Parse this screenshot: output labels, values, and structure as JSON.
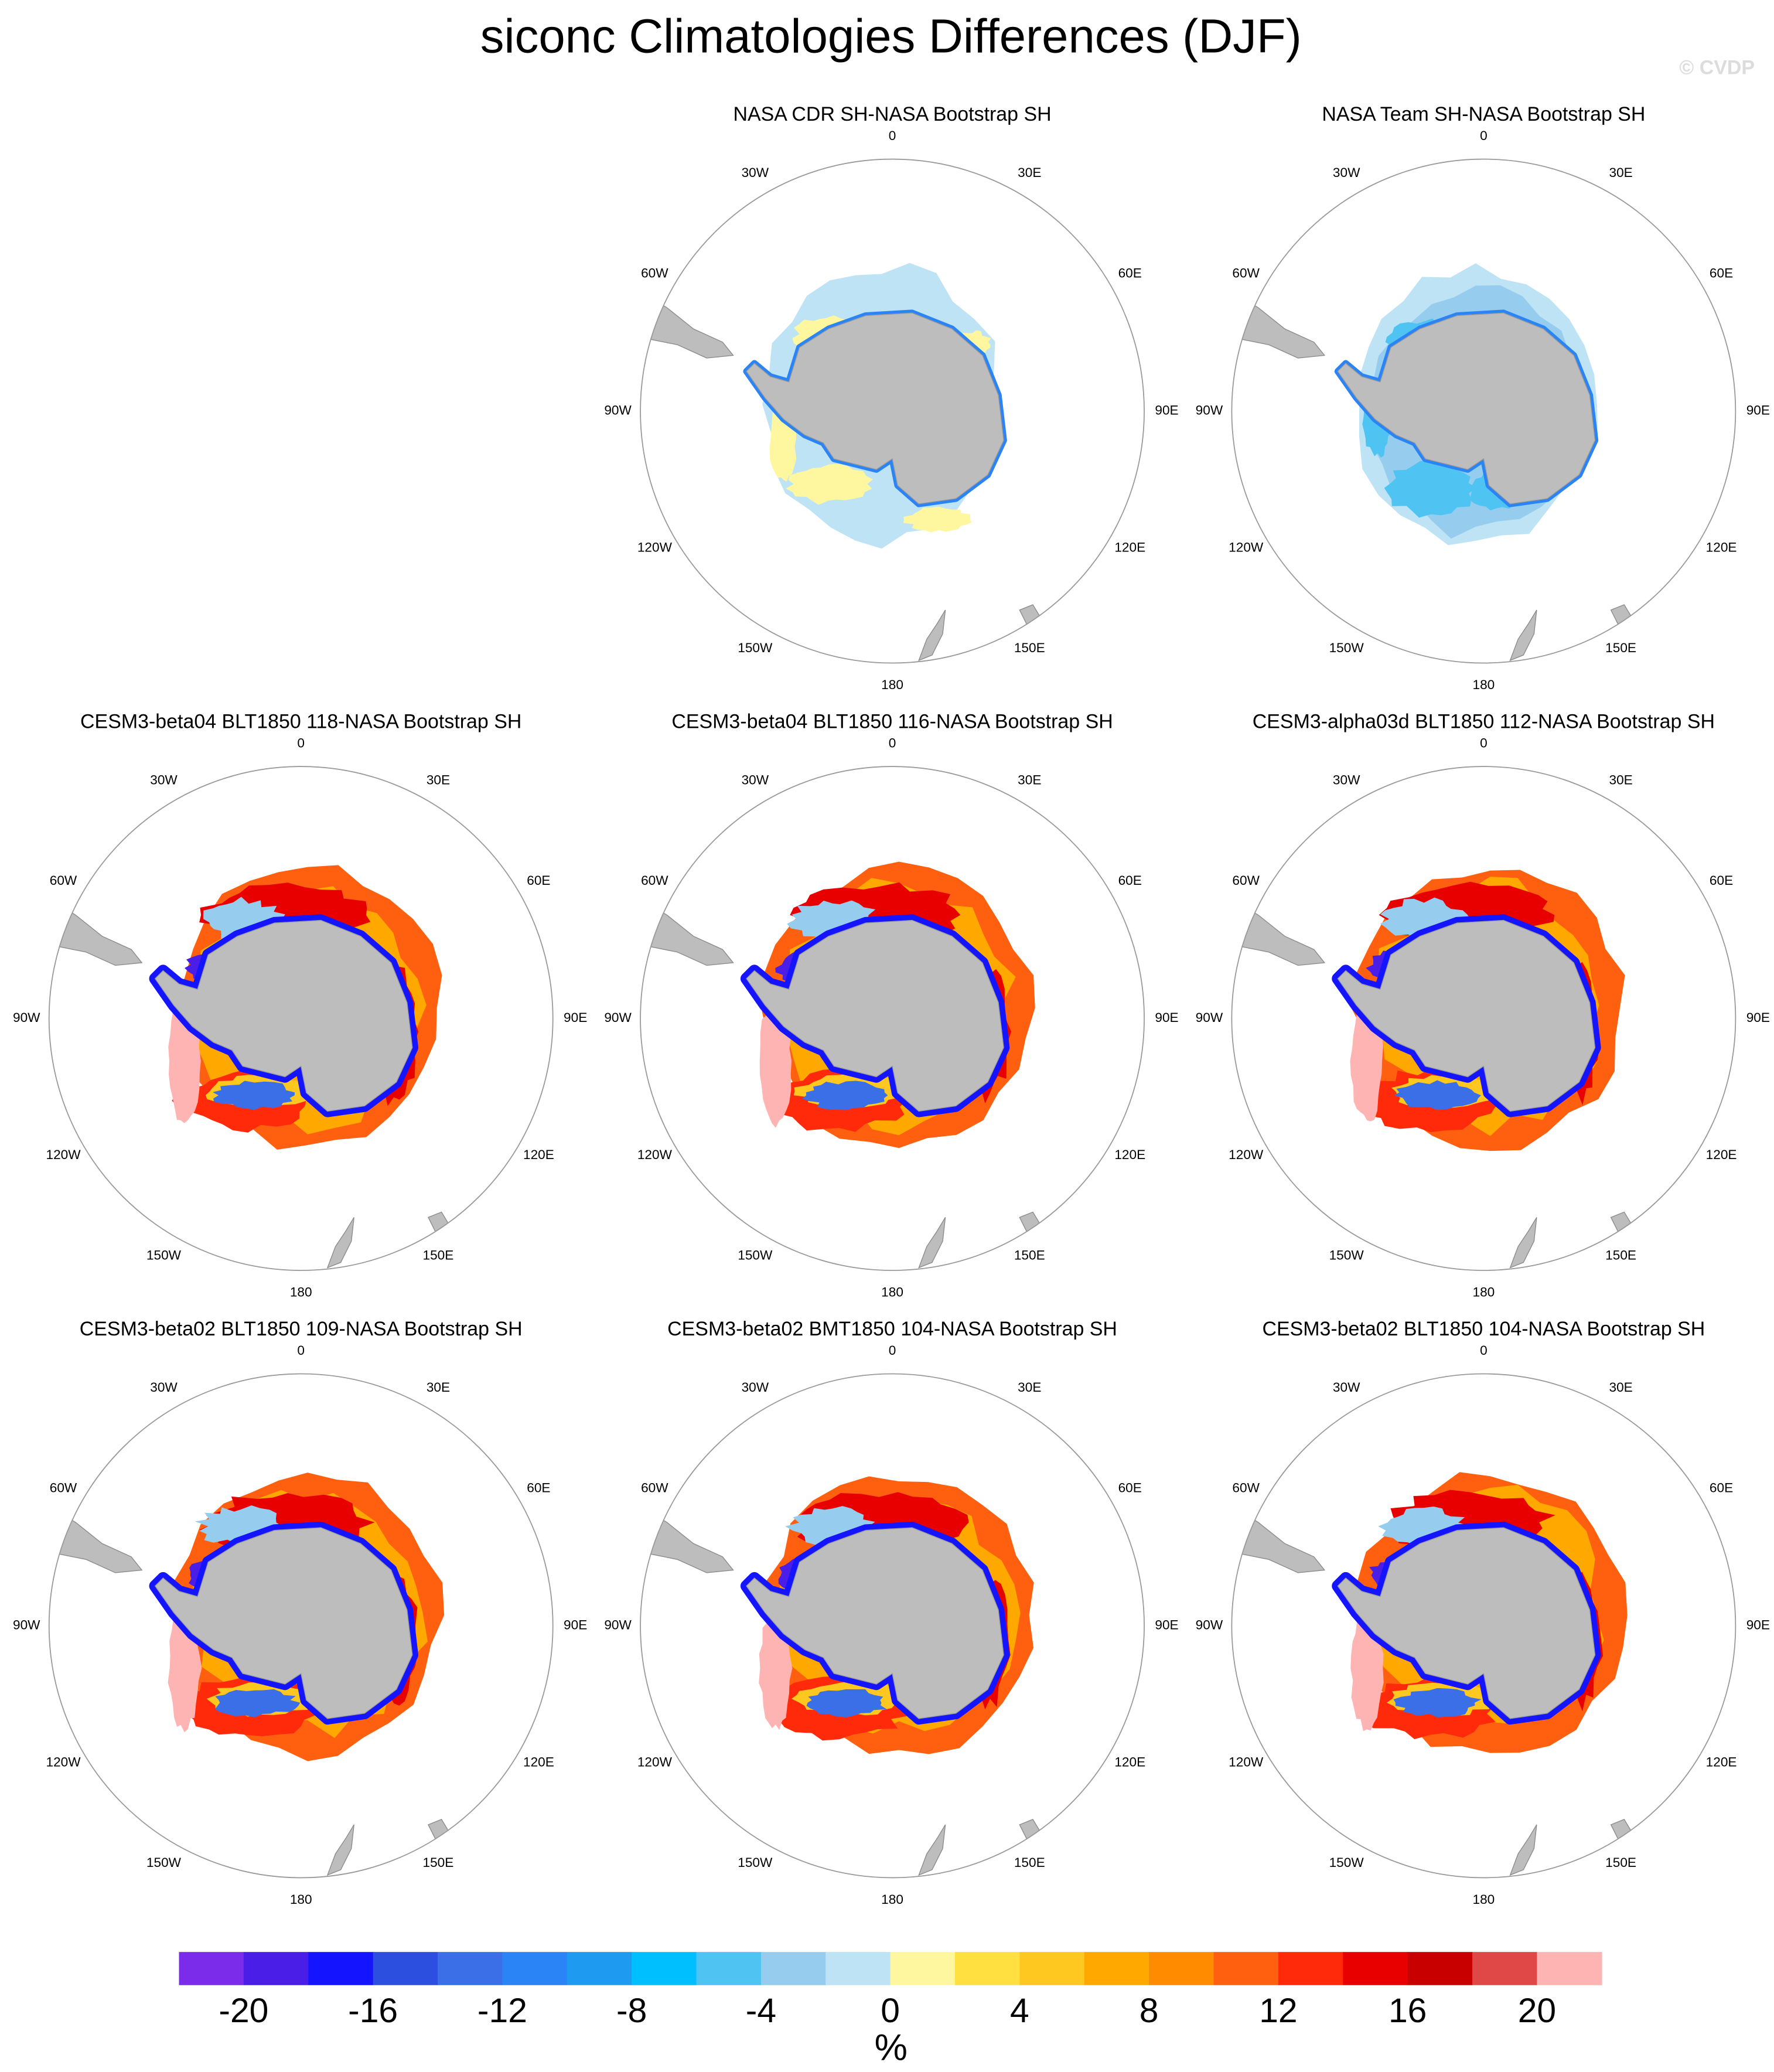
{
  "title": "siconc Climatologies Differences (DJF)",
  "watermark": "© CVDP",
  "lon_labels": [
    "0",
    "30E",
    "60E",
    "90E",
    "120E",
    "150E",
    "180",
    "150W",
    "120W",
    "90W",
    "60W",
    "30W"
  ],
  "panels": [
    {
      "title": "NASA CDR SH-NASA Bootstrap SH"
    },
    {
      "title": "NASA Team SH-NASA Bootstrap SH"
    },
    {
      "title": "CESM3-beta04 BLT1850 118-NASA Bootstrap SH"
    },
    {
      "title": "CESM3-beta04 BLT1850 116-NASA Bootstrap SH"
    },
    {
      "title": "CESM3-alpha03d BLT1850 112-NASA Bootstrap SH"
    },
    {
      "title": "CESM3-beta02 BLT1850 109-NASA Bootstrap SH"
    },
    {
      "title": "CESM3-beta02 BMT1850 104-NASA Bootstrap SH"
    },
    {
      "title": "CESM3-beta02 BLT1850 104-NASA Bootstrap SH"
    }
  ],
  "colorbar": {
    "levels": [
      -20,
      -18,
      -16,
      -14,
      -12,
      -10,
      -8,
      -6,
      -4,
      -2,
      0,
      2,
      4,
      6,
      8,
      10,
      12,
      14,
      16,
      18,
      20
    ],
    "colors": [
      "#7b2bea",
      "#4b1ee8",
      "#1414ff",
      "#2d4fe0",
      "#3a6fe8",
      "#2a84f5",
      "#1e9bf0",
      "#00bfff",
      "#4fc3f2",
      "#96cdee",
      "#bde3f5",
      "#fff7a0",
      "#ffe040",
      "#ffc820",
      "#ffa800",
      "#ff8c00",
      "#ff6010",
      "#ff2a0a",
      "#e80000",
      "#c80000",
      "#e04848",
      "#ffb4b4"
    ],
    "ticks": [
      -20,
      -16,
      -12,
      -8,
      -4,
      0,
      4,
      8,
      12,
      16,
      20
    ],
    "unit": "%"
  }
}
